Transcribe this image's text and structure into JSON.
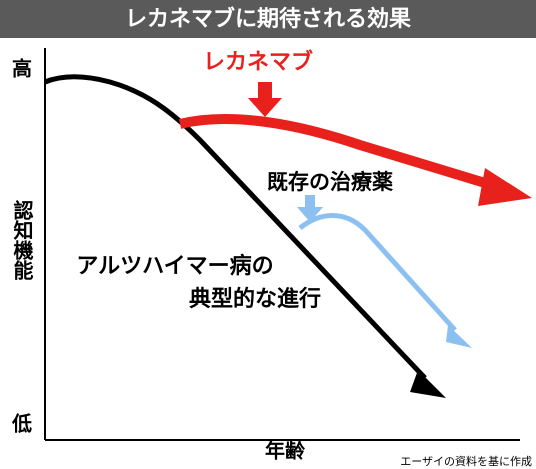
{
  "header": {
    "title": "レカネマブに期待される効果"
  },
  "axes": {
    "y_high": "高",
    "y_low": "低",
    "y_label": "認知機能",
    "x_label": "年齢"
  },
  "curves": {
    "lecanemab": "レカネマブ",
    "existing": "既存の治療薬",
    "typical_line1": "アルツハイマー病の",
    "typical_line2": "典型的な進行"
  },
  "source": "エーザイの資料を基に作成"
}
